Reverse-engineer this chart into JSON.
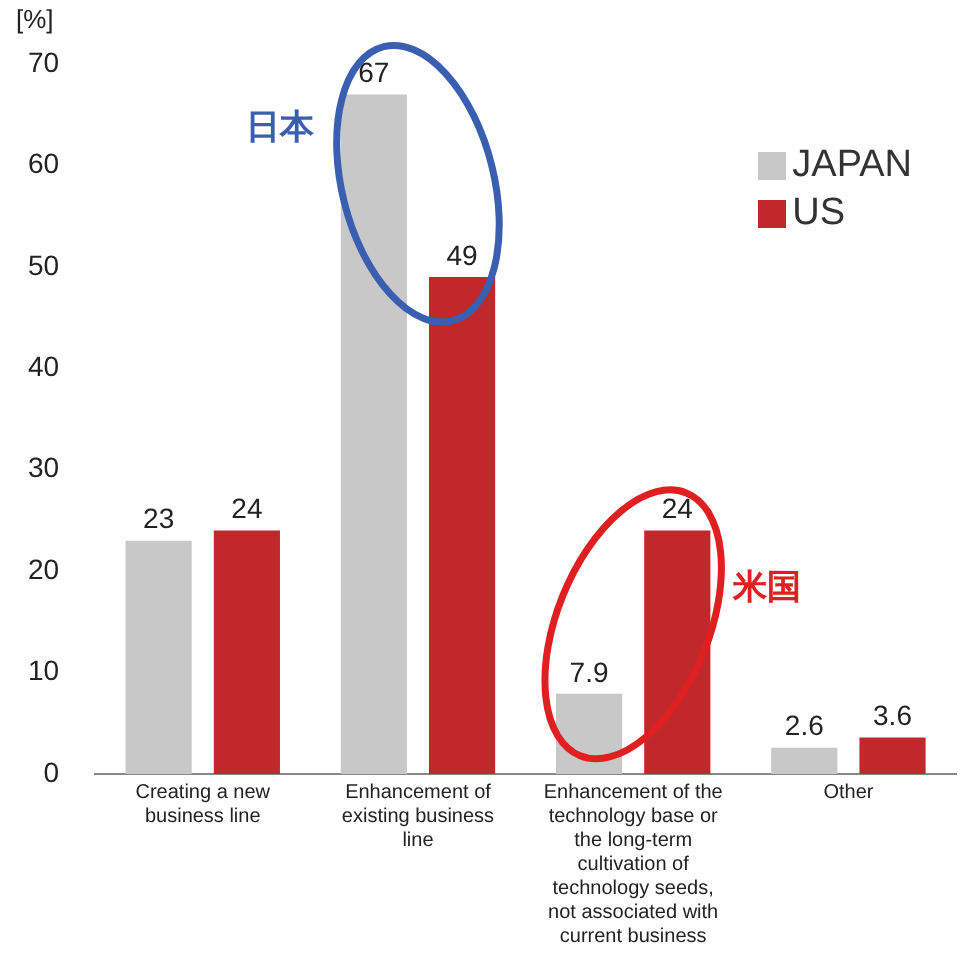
{
  "chart_data": {
    "type": "bar",
    "ylabel": "[%]",
    "categories": [
      "Creating a new business line",
      "Enhancement of existing business line",
      "Enhancement of the technology base or the long-term cultivation of technology seeds, not associated with current business",
      "Other"
    ],
    "series": [
      {
        "name": "JAPAN",
        "color": "#c8c8c8",
        "values": [
          23,
          67,
          7.9,
          2.6
        ]
      },
      {
        "name": "US",
        "color": "#c0282c",
        "values": [
          24,
          49,
          24,
          3.6
        ]
      }
    ],
    "ylim": [
      0,
      70
    ],
    "yticks": [
      0,
      10,
      20,
      30,
      40,
      50,
      60,
      70
    ],
    "grid": false,
    "legend": "top right",
    "data_labels": true,
    "annotations": [
      "日本",
      "米国"
    ]
  }
}
